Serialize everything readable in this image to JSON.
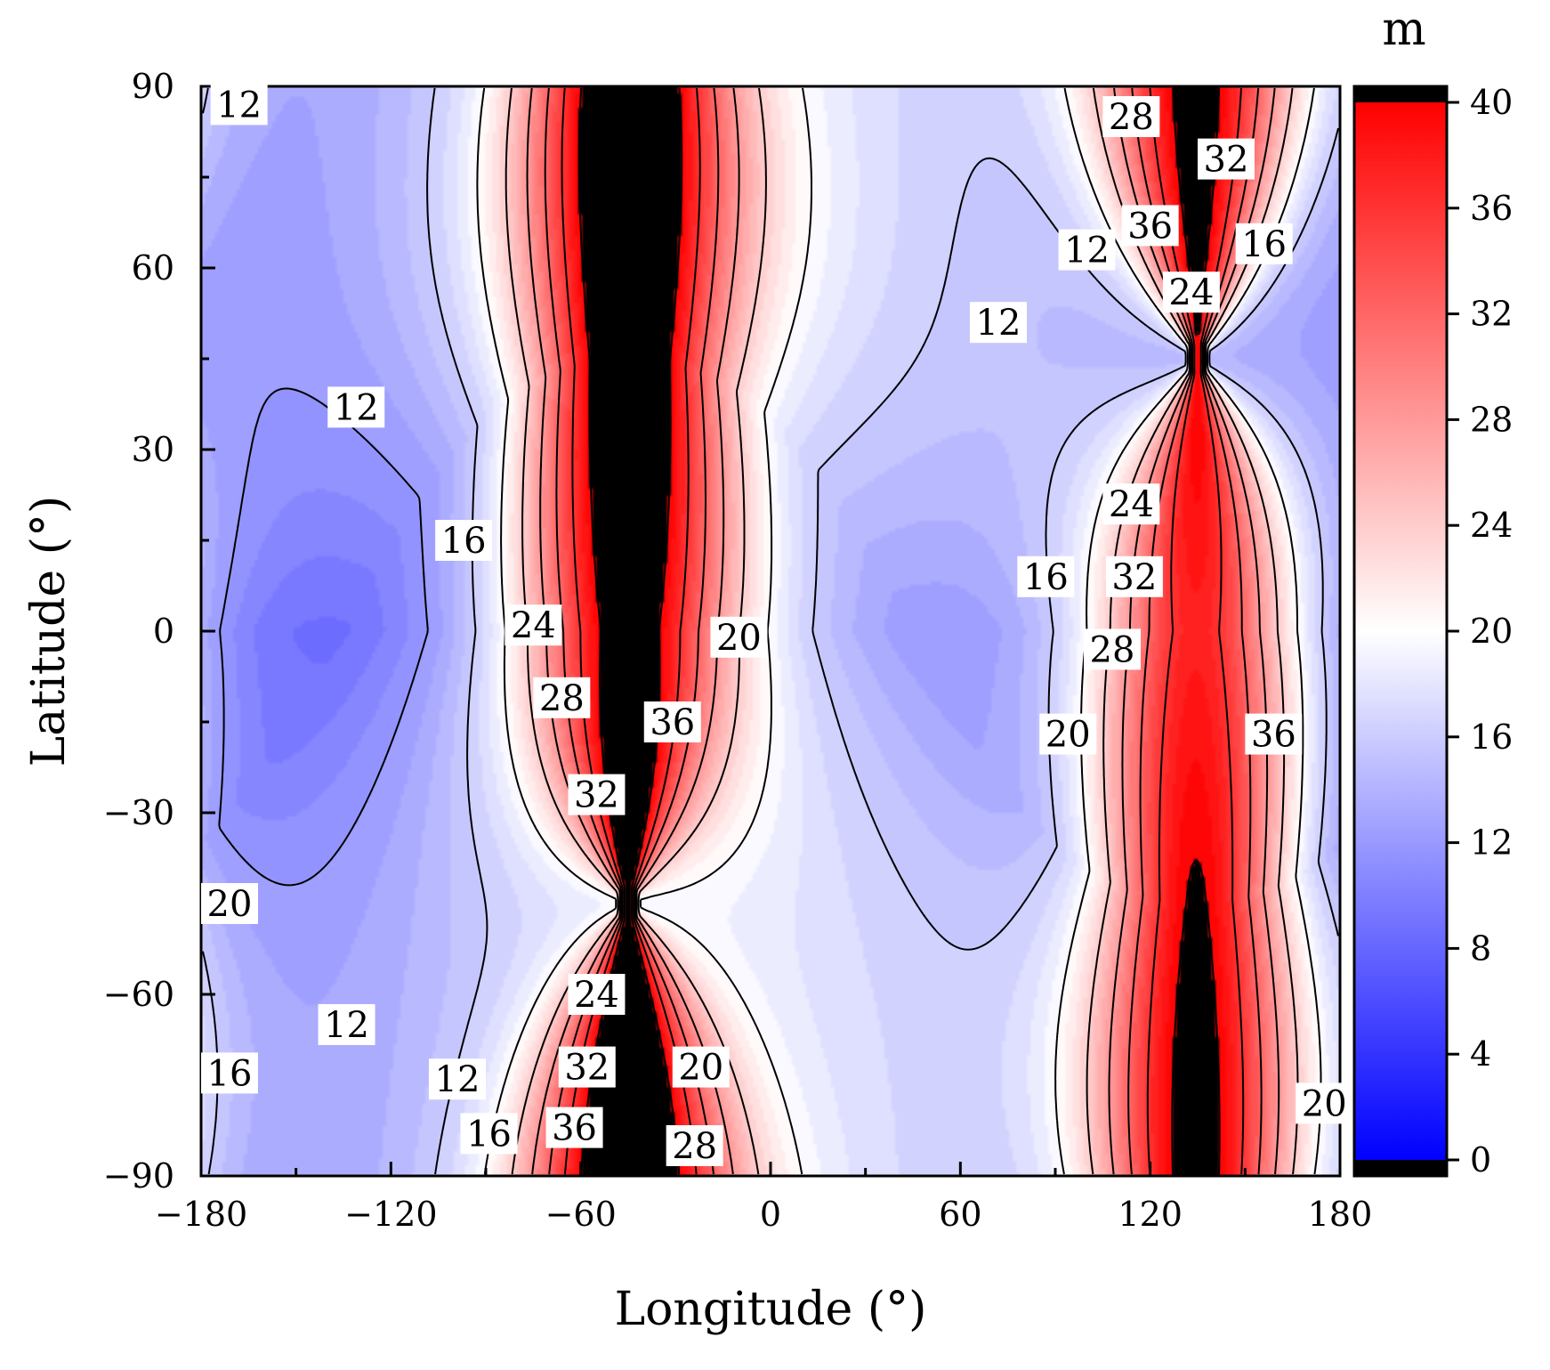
{
  "chart_data": {
    "type": "heatmap",
    "subtype": "filled-contour",
    "xlabel": "Longitude (°)",
    "ylabel": "Latitude (°)",
    "xlim": [
      -180,
      180
    ],
    "ylim": [
      -90,
      90
    ],
    "xticks": [
      -180,
      -120,
      -60,
      0,
      60,
      120,
      180
    ],
    "yticks": [
      90,
      60,
      30,
      0,
      -30,
      -60,
      -90
    ],
    "x_tick_labels": [
      "−180",
      "−120",
      "−60",
      "0",
      "60",
      "120",
      "180"
    ],
    "y_tick_labels": [
      "90",
      "60",
      "30",
      "0",
      "−30",
      "−60",
      "−90"
    ],
    "colorbar": {
      "unit": "m",
      "range": [
        0,
        40
      ],
      "ticks": [
        0,
        4,
        8,
        12,
        16,
        20,
        24,
        28,
        32,
        36,
        40
      ],
      "colors": {
        "low": "#0000ff",
        "mid": "#ffffff",
        "high": "#ff0000",
        "out_of_range": "#000000"
      }
    },
    "singular_points": [
      {
        "lon": -45,
        "lat": -45
      },
      {
        "lon": 135,
        "lat": 45
      }
    ],
    "contour_levels": [
      12,
      16,
      20,
      24,
      28,
      32,
      36
    ],
    "contour_labels": [
      {
        "text": "12",
        "lon": -168,
        "lat": 87
      },
      {
        "text": "12",
        "lon": -131,
        "lat": 37
      },
      {
        "text": "16",
        "lon": -97,
        "lat": 15
      },
      {
        "text": "24",
        "lon": -75,
        "lat": 1
      },
      {
        "text": "28",
        "lon": -66,
        "lat": -11
      },
      {
        "text": "36",
        "lon": -31,
        "lat": -15
      },
      {
        "text": "20",
        "lon": -10,
        "lat": -1
      },
      {
        "text": "32",
        "lon": -55,
        "lat": -27
      },
      {
        "text": "20",
        "lon": -171,
        "lat": -45
      },
      {
        "text": "12",
        "lon": -134,
        "lat": -65
      },
      {
        "text": "16",
        "lon": -171,
        "lat": -73
      },
      {
        "text": "24",
        "lon": -55,
        "lat": -60
      },
      {
        "text": "32",
        "lon": -58,
        "lat": -72
      },
      {
        "text": "20",
        "lon": -22,
        "lat": -72
      },
      {
        "text": "12",
        "lon": -99,
        "lat": -74
      },
      {
        "text": "16",
        "lon": -89,
        "lat": -83
      },
      {
        "text": "36",
        "lon": -62,
        "lat": -82
      },
      {
        "text": "28",
        "lon": -24,
        "lat": -85
      },
      {
        "text": "28",
        "lon": 114,
        "lat": 85
      },
      {
        "text": "32",
        "lon": 144,
        "lat": 78
      },
      {
        "text": "36",
        "lon": 120,
        "lat": 67
      },
      {
        "text": "12",
        "lon": 100,
        "lat": 63
      },
      {
        "text": "16",
        "lon": 156,
        "lat": 64
      },
      {
        "text": "24",
        "lon": 133,
        "lat": 56
      },
      {
        "text": "12",
        "lon": 72,
        "lat": 51
      },
      {
        "text": "24",
        "lon": 114,
        "lat": 21
      },
      {
        "text": "32",
        "lon": 115,
        "lat": 9
      },
      {
        "text": "16",
        "lon": 87,
        "lat": 9
      },
      {
        "text": "28",
        "lon": 108,
        "lat": -3
      },
      {
        "text": "20",
        "lon": 94,
        "lat": -17
      },
      {
        "text": "36",
        "lon": 159,
        "lat": -17
      },
      {
        "text": "20",
        "lon": 175,
        "lat": -78
      }
    ]
  }
}
